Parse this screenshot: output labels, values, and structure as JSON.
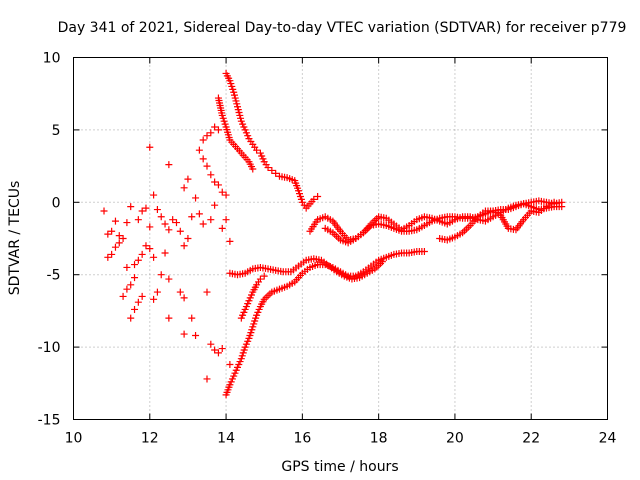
{
  "chart_data": {
    "type": "scatter",
    "title": "Day 341 of 2021, Sidereal Day-to-day VTEC variation (SDTVAR) for receiver p779",
    "xlabel": "GPS time / hours",
    "ylabel": "SDTVAR / TECUs",
    "xlim": [
      10,
      24
    ],
    "ylim": [
      -15,
      10
    ],
    "xticks": [
      10,
      12,
      14,
      16,
      18,
      20,
      22,
      24
    ],
    "yticks": [
      -15,
      -10,
      -5,
      0,
      5,
      10
    ],
    "grid": true,
    "marker": "+",
    "marker_color": "#ff0000",
    "series": [
      {
        "name": "track-upper-decline",
        "points": [
          [
            14.0,
            8.9
          ],
          [
            14.1,
            8.4
          ],
          [
            14.2,
            7.6
          ],
          [
            14.3,
            6.6
          ],
          [
            14.4,
            5.6
          ],
          [
            14.5,
            5.0
          ],
          [
            14.6,
            4.4
          ],
          [
            14.7,
            4.0
          ],
          [
            14.8,
            3.6
          ],
          [
            14.9,
            3.4
          ],
          [
            15.0,
            2.8
          ],
          [
            15.1,
            2.4
          ],
          [
            15.2,
            2.2
          ],
          [
            15.3,
            2.0
          ],
          [
            15.4,
            1.8
          ],
          [
            15.6,
            1.7
          ],
          [
            15.8,
            1.5
          ],
          [
            15.9,
            0.8
          ],
          [
            16.0,
            0.0
          ],
          [
            16.1,
            -0.4
          ],
          [
            16.2,
            -0.1
          ],
          [
            16.3,
            0.2
          ],
          [
            16.4,
            0.4
          ]
        ]
      },
      {
        "name": "track-upper-decline-secondary",
        "points": [
          [
            13.8,
            7.2
          ],
          [
            13.9,
            6.0
          ],
          [
            14.0,
            5.2
          ],
          [
            14.1,
            4.3
          ],
          [
            14.2,
            4.0
          ],
          [
            14.3,
            3.7
          ],
          [
            14.4,
            3.4
          ],
          [
            14.5,
            3.1
          ],
          [
            14.6,
            2.8
          ],
          [
            14.7,
            2.3
          ]
        ]
      },
      {
        "name": "track-lower-rise",
        "points": [
          [
            14.0,
            -13.3
          ],
          [
            14.1,
            -12.6
          ],
          [
            14.2,
            -12.0
          ],
          [
            14.3,
            -11.4
          ],
          [
            14.4,
            -10.8
          ],
          [
            14.5,
            -10.0
          ],
          [
            14.6,
            -9.4
          ],
          [
            14.7,
            -8.6
          ],
          [
            14.8,
            -7.8
          ],
          [
            14.9,
            -7.2
          ],
          [
            15.0,
            -6.7
          ],
          [
            15.2,
            -6.2
          ],
          [
            15.4,
            -6.0
          ],
          [
            15.6,
            -5.8
          ],
          [
            15.8,
            -5.5
          ],
          [
            16.0,
            -4.9
          ],
          [
            16.2,
            -4.5
          ],
          [
            16.4,
            -4.3
          ],
          [
            16.6,
            -4.3
          ],
          [
            16.8,
            -4.5
          ],
          [
            17.0,
            -4.8
          ],
          [
            17.2,
            -5.1
          ],
          [
            17.4,
            -5.1
          ],
          [
            17.6,
            -4.8
          ],
          [
            17.8,
            -4.4
          ],
          [
            18.0,
            -4.0
          ],
          [
            18.2,
            -3.8
          ],
          [
            18.4,
            -3.6
          ],
          [
            18.6,
            -3.5
          ],
          [
            18.8,
            -3.5
          ],
          [
            19.0,
            -3.4
          ],
          [
            19.2,
            -3.4
          ]
        ]
      },
      {
        "name": "track-mid-a",
        "points": [
          [
            14.1,
            -4.9
          ],
          [
            14.3,
            -5.0
          ],
          [
            14.5,
            -4.9
          ],
          [
            14.7,
            -4.6
          ],
          [
            14.9,
            -4.5
          ],
          [
            15.1,
            -4.6
          ],
          [
            15.3,
            -4.7
          ],
          [
            15.5,
            -4.8
          ],
          [
            15.7,
            -4.8
          ],
          [
            15.9,
            -4.4
          ],
          [
            16.1,
            -4.0
          ],
          [
            16.3,
            -3.9
          ],
          [
            16.5,
            -4.0
          ],
          [
            16.7,
            -4.4
          ],
          [
            16.9,
            -4.8
          ],
          [
            17.1,
            -5.1
          ],
          [
            17.3,
            -5.3
          ],
          [
            17.5,
            -5.2
          ],
          [
            17.7,
            -4.9
          ],
          [
            17.9,
            -4.6
          ],
          [
            18.1,
            -4.1
          ]
        ]
      },
      {
        "name": "track-mid-b",
        "points": [
          [
            14.4,
            -8.0
          ],
          [
            14.5,
            -7.4
          ],
          [
            14.6,
            -6.8
          ],
          [
            14.7,
            -6.2
          ],
          [
            14.8,
            -5.7
          ],
          [
            14.9,
            -5.3
          ],
          [
            15.0,
            -5.1
          ]
        ]
      },
      {
        "name": "track-right-a",
        "points": [
          [
            16.2,
            -2.0
          ],
          [
            16.4,
            -1.2
          ],
          [
            16.6,
            -1.0
          ],
          [
            16.8,
            -1.3
          ],
          [
            17.0,
            -2.0
          ],
          [
            17.2,
            -2.6
          ],
          [
            17.4,
            -2.5
          ],
          [
            17.6,
            -2.1
          ],
          [
            17.8,
            -1.6
          ],
          [
            18.0,
            -1.5
          ],
          [
            18.2,
            -1.6
          ],
          [
            18.4,
            -1.8
          ],
          [
            18.6,
            -2.0
          ],
          [
            18.8,
            -2.0
          ],
          [
            19.0,
            -1.9
          ],
          [
            19.2,
            -1.6
          ],
          [
            19.4,
            -1.3
          ],
          [
            19.6,
            -1.1
          ],
          [
            19.8,
            -1.0
          ],
          [
            20.0,
            -1.0
          ],
          [
            20.2,
            -1.1
          ],
          [
            20.4,
            -1.1
          ],
          [
            20.6,
            -1.0
          ],
          [
            20.8,
            -0.8
          ],
          [
            21.0,
            -0.6
          ],
          [
            21.2,
            -0.5
          ],
          [
            21.4,
            -0.5
          ],
          [
            21.6,
            -0.3
          ],
          [
            21.8,
            -0.1
          ],
          [
            22.0,
            -0.3
          ],
          [
            22.2,
            -0.5
          ],
          [
            22.4,
            -0.4
          ],
          [
            22.6,
            -0.3
          ],
          [
            22.8,
            -0.3
          ]
        ]
      },
      {
        "name": "track-right-b",
        "points": [
          [
            16.6,
            -1.8
          ],
          [
            16.8,
            -2.1
          ],
          [
            17.0,
            -2.6
          ],
          [
            17.2,
            -2.8
          ],
          [
            17.4,
            -2.5
          ],
          [
            17.6,
            -2.1
          ],
          [
            17.8,
            -1.5
          ],
          [
            18.0,
            -1.0
          ],
          [
            18.2,
            -1.1
          ],
          [
            18.4,
            -1.5
          ],
          [
            18.6,
            -1.9
          ],
          [
            18.8,
            -1.6
          ],
          [
            19.0,
            -1.2
          ],
          [
            19.2,
            -1.0
          ],
          [
            19.4,
            -1.1
          ],
          [
            19.6,
            -1.3
          ],
          [
            19.8,
            -1.5
          ],
          [
            20.0,
            -1.2
          ],
          [
            20.2,
            -1.0
          ],
          [
            20.4,
            -1.0
          ],
          [
            20.6,
            -1.2
          ],
          [
            20.8,
            -1.3
          ],
          [
            21.0,
            -1.0
          ],
          [
            21.2,
            -0.7
          ],
          [
            21.4,
            -0.4
          ],
          [
            21.6,
            -0.2
          ],
          [
            21.8,
            -0.1
          ],
          [
            22.0,
            0.0
          ],
          [
            22.2,
            0.1
          ],
          [
            22.4,
            0.0
          ],
          [
            22.6,
            -0.1
          ],
          [
            22.8,
            0.0
          ]
        ]
      },
      {
        "name": "track-right-c",
        "points": [
          [
            19.6,
            -2.5
          ],
          [
            19.8,
            -2.6
          ],
          [
            20.0,
            -2.4
          ],
          [
            20.2,
            -2.1
          ],
          [
            20.4,
            -1.6
          ],
          [
            20.6,
            -1.0
          ],
          [
            20.8,
            -0.6
          ],
          [
            21.0,
            -0.6
          ],
          [
            21.2,
            -0.9
          ],
          [
            21.4,
            -1.8
          ],
          [
            21.6,
            -1.9
          ],
          [
            21.8,
            -1.2
          ],
          [
            22.0,
            -0.6
          ],
          [
            22.2,
            -0.7
          ],
          [
            22.4,
            -0.3
          ],
          [
            22.6,
            0.0
          ]
        ]
      },
      {
        "name": "scatter-left-cluster",
        "points": [
          [
            10.8,
            -0.6
          ],
          [
            10.9,
            -2.2
          ],
          [
            11.0,
            -2.0
          ],
          [
            11.1,
            -1.3
          ],
          [
            11.2,
            -2.3
          ],
          [
            10.9,
            -3.8
          ],
          [
            11.0,
            -3.6
          ],
          [
            11.1,
            -3.1
          ],
          [
            11.2,
            -2.8
          ],
          [
            11.3,
            -2.5
          ],
          [
            11.4,
            -1.4
          ],
          [
            11.5,
            -0.3
          ],
          [
            11.4,
            -4.5
          ],
          [
            11.6,
            -4.3
          ],
          [
            11.7,
            -4.0
          ],
          [
            11.8,
            -3.6
          ],
          [
            11.9,
            -3.0
          ],
          [
            11.3,
            -6.5
          ],
          [
            11.4,
            -6.0
          ],
          [
            11.5,
            -5.7
          ],
          [
            11.6,
            -5.2
          ],
          [
            11.5,
            -8.0
          ],
          [
            11.6,
            -7.4
          ],
          [
            11.7,
            -6.9
          ],
          [
            11.8,
            -6.5
          ],
          [
            11.7,
            -1.2
          ],
          [
            11.8,
            -0.6
          ],
          [
            11.9,
            -0.4
          ],
          [
            12.0,
            -1.7
          ],
          [
            12.0,
            3.8
          ],
          [
            12.0,
            -3.2
          ],
          [
            12.1,
            -3.8
          ],
          [
            12.1,
            -6.7
          ],
          [
            12.2,
            -6.2
          ],
          [
            12.3,
            -5.0
          ],
          [
            12.4,
            -3.5
          ],
          [
            12.2,
            -0.5
          ],
          [
            12.3,
            -1.0
          ],
          [
            12.4,
            -1.5
          ],
          [
            12.5,
            -1.9
          ],
          [
            12.5,
            -5.3
          ],
          [
            12.6,
            -1.2
          ],
          [
            12.7,
            -1.4
          ],
          [
            12.8,
            -2.0
          ],
          [
            12.9,
            -3.0
          ],
          [
            12.8,
            -6.2
          ],
          [
            12.9,
            -6.6
          ],
          [
            13.0,
            -2.5
          ],
          [
            13.1,
            -1.0
          ],
          [
            12.5,
            -8.0
          ],
          [
            12.9,
            -9.1
          ],
          [
            13.1,
            -8.0
          ],
          [
            13.2,
            -9.2
          ],
          [
            12.5,
            2.6
          ],
          [
            12.9,
            1.0
          ],
          [
            13.0,
            1.6
          ],
          [
            12.1,
            0.5
          ],
          [
            13.2,
            0.3
          ],
          [
            13.3,
            -0.8
          ],
          [
            13.4,
            -1.5
          ],
          [
            13.5,
            -6.2
          ],
          [
            13.6,
            -1.2
          ],
          [
            13.7,
            -0.2
          ],
          [
            13.3,
            3.6
          ],
          [
            13.4,
            4.3
          ],
          [
            13.5,
            4.6
          ],
          [
            13.6,
            4.8
          ],
          [
            13.7,
            5.2
          ],
          [
            13.8,
            5.0
          ],
          [
            13.5,
            2.5
          ],
          [
            13.6,
            1.9
          ],
          [
            13.7,
            1.4
          ],
          [
            13.8,
            1.2
          ],
          [
            13.9,
            0.7
          ],
          [
            14.0,
            0.5
          ],
          [
            13.6,
            -9.8
          ],
          [
            13.7,
            -10.2
          ],
          [
            13.8,
            -10.4
          ],
          [
            13.9,
            -10.1
          ],
          [
            13.5,
            -12.2
          ],
          [
            14.1,
            -11.2
          ],
          [
            14.1,
            -2.7
          ],
          [
            14.0,
            -1.2
          ],
          [
            13.9,
            -1.8
          ],
          [
            13.4,
            3.0
          ]
        ]
      }
    ]
  }
}
